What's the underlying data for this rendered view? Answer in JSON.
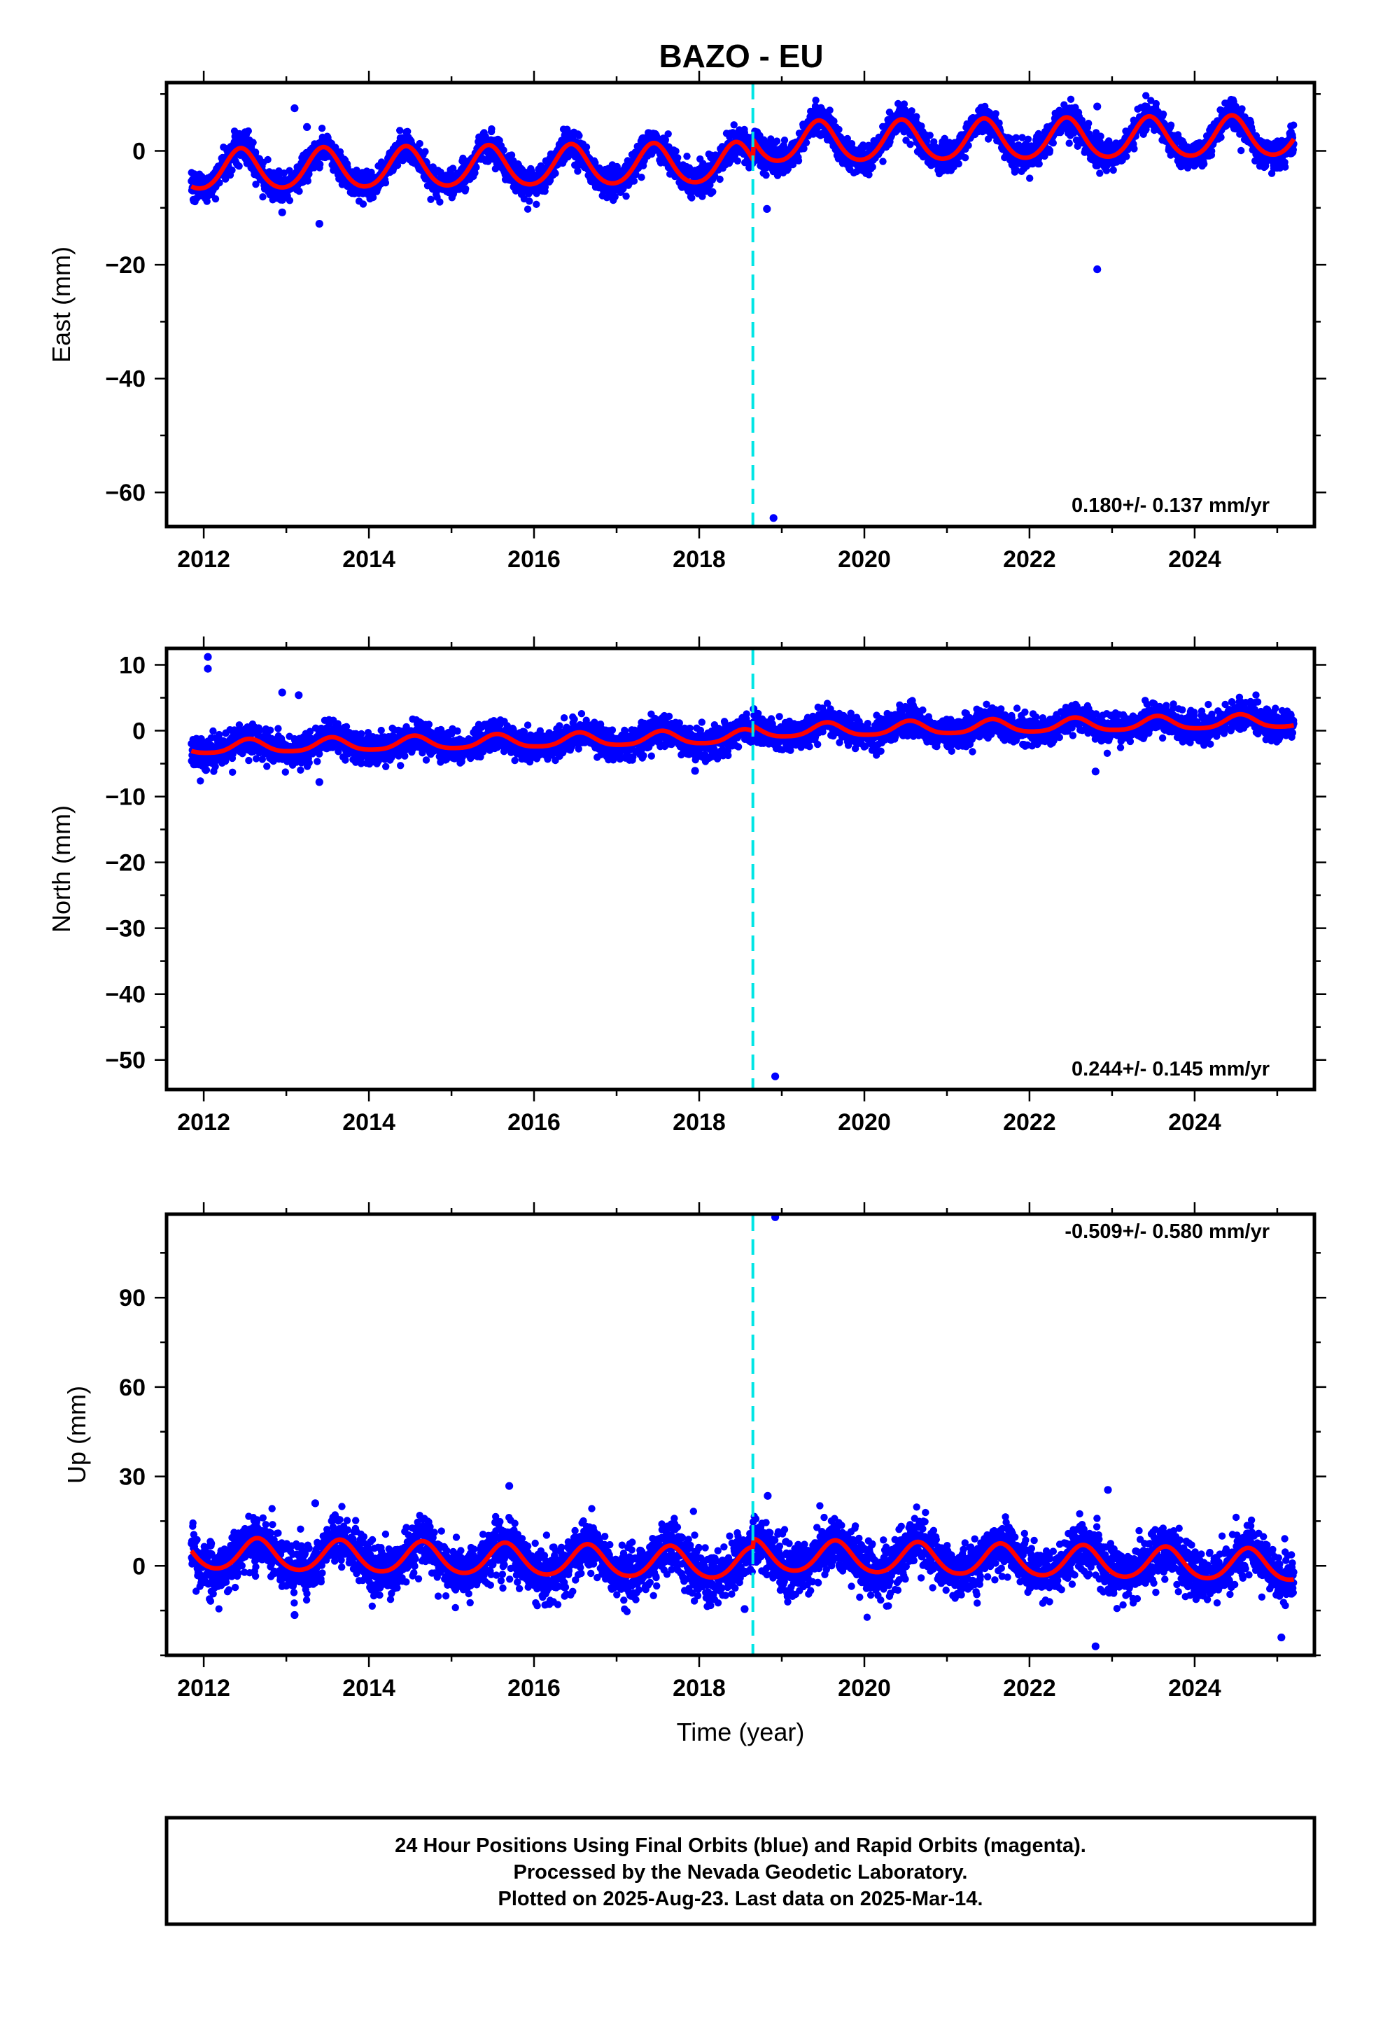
{
  "title": "BAZO - EU",
  "caption": {
    "lines": [
      "24 Hour Positions Using Final Orbits (blue) and Rapid Orbits (magenta).",
      "Processed by the Nevada Geodetic Laboratory.",
      "Plotted on 2025-Aug-23. Last data on 2025-Mar-14."
    ]
  },
  "colors": {
    "points": "#0000ff",
    "model": "#ff0000",
    "event_line": "#00e5e5",
    "frame": "#000000"
  },
  "chart_data": [
    {
      "type": "scatter",
      "component": "east",
      "ylabel": "East (mm)",
      "xlabel": "",
      "rate_text": "0.180+/- 0.137 mm/yr",
      "rate_placement": "bottom-right",
      "xlim": [
        2011.55,
        2025.45
      ],
      "ylim": [
        -66,
        12
      ],
      "xticks": [
        2012,
        2014,
        2016,
        2018,
        2020,
        2022,
        2024
      ],
      "xtick_labels": [
        "2012",
        "2014",
        "2016",
        "2018",
        "2020",
        "2022",
        "2024"
      ],
      "yticks": [
        0,
        -20,
        -40,
        -60
      ],
      "ytick_labels": [
        "0",
        "−20",
        "−40",
        "−60"
      ],
      "ytick_minor_step": 10,
      "grid": false,
      "data_start": 2011.85,
      "data_end": 2025.2,
      "event_line_x": 2018.65,
      "model": {
        "offset_before": -2.4,
        "offset_after": 1.2,
        "rate": 0.18,
        "annual_amp": 3.5,
        "annual_phase_year": 0.45,
        "semiannual_amp": 0.4,
        "steps": [
          {
            "x": 2018.65,
            "dy": 2.6
          }
        ]
      },
      "noise_sd": 1.3,
      "outliers": [
        {
          "x": 2013.1,
          "y": 7.5
        },
        {
          "x": 2013.25,
          "y": 4.2
        },
        {
          "x": 2013.4,
          "y": -12.8
        },
        {
          "x": 2012.95,
          "y": -10.8
        },
        {
          "x": 2018.82,
          "y": -10.2
        },
        {
          "x": 2018.9,
          "y": -64.5
        },
        {
          "x": 2022.82,
          "y": -20.8
        },
        {
          "x": 2022.82,
          "y": 7.8
        }
      ]
    },
    {
      "type": "scatter",
      "component": "north",
      "ylabel": "North (mm)",
      "xlabel": "",
      "rate_text": "0.244+/- 0.145 mm/yr",
      "rate_placement": "bottom-right",
      "xlim": [
        2011.55,
        2025.45
      ],
      "ylim": [
        -54.5,
        12.5
      ],
      "xticks": [
        2012,
        2014,
        2016,
        2018,
        2020,
        2022,
        2024
      ],
      "xtick_labels": [
        "2012",
        "2014",
        "2016",
        "2018",
        "2020",
        "2022",
        "2024"
      ],
      "yticks": [
        10,
        0,
        -10,
        -20,
        -30,
        -40,
        -50
      ],
      "ytick_labels": [
        "10",
        "0",
        "−10",
        "−20",
        "−30",
        "−40",
        "−50"
      ],
      "ytick_minor_step": 5,
      "grid": false,
      "data_start": 2011.85,
      "data_end": 2025.2,
      "event_line_x": 2018.65,
      "model": {
        "offset_before": -1.1,
        "offset_after": -0.3,
        "rate": 0.244,
        "annual_amp": 1.0,
        "annual_phase_year": 0.55,
        "semiannual_amp": 0.2,
        "steps": []
      },
      "noise_sd": 1.1,
      "outliers": [
        {
          "x": 2012.05,
          "y": 11.2
        },
        {
          "x": 2012.05,
          "y": 9.4
        },
        {
          "x": 2012.95,
          "y": 5.8
        },
        {
          "x": 2013.15,
          "y": 5.4
        },
        {
          "x": 2013.4,
          "y": -7.8
        },
        {
          "x": 2017.95,
          "y": -6.1
        },
        {
          "x": 2018.92,
          "y": -52.5
        },
        {
          "x": 2022.8,
          "y": -6.2
        }
      ]
    },
    {
      "type": "scatter",
      "component": "up",
      "ylabel": "Up (mm)",
      "xlabel": "Time (year)",
      "rate_text": "-0.509+/- 0.580 mm/yr",
      "rate_placement": "top-right",
      "xlim": [
        2011.55,
        2025.45
      ],
      "ylim": [
        -30,
        118
      ],
      "xticks": [
        2012,
        2014,
        2016,
        2018,
        2020,
        2022,
        2024
      ],
      "xtick_labels": [
        "2012",
        "2014",
        "2016",
        "2018",
        "2020",
        "2022",
        "2024"
      ],
      "yticks": [
        90,
        60,
        30,
        0
      ],
      "ytick_labels": [
        "90",
        "60",
        "30",
        "0"
      ],
      "ytick_minor_step": 15,
      "grid": false,
      "data_start": 2011.85,
      "data_end": 2025.2,
      "event_line_x": 2018.65,
      "model": {
        "offset_before": 0.8,
        "offset_after": 3.6,
        "rate": -0.509,
        "annual_amp": 5.2,
        "annual_phase_year": 0.65,
        "semiannual_amp": 0.6,
        "steps": [
          {
            "x": 2018.65,
            "dy": 2.8
          }
        ]
      },
      "noise_sd": 4.3,
      "outliers": [
        {
          "x": 2018.92,
          "y": 117
        },
        {
          "x": 2015.7,
          "y": 26.8
        },
        {
          "x": 2022.95,
          "y": 25.5
        },
        {
          "x": 2018.83,
          "y": 23.5
        },
        {
          "x": 2013.35,
          "y": 21.0
        },
        {
          "x": 2013.1,
          "y": -16.5
        },
        {
          "x": 2018.55,
          "y": -14.5
        },
        {
          "x": 2022.8,
          "y": -27.0
        },
        {
          "x": 2025.05,
          "y": -24.0
        }
      ]
    }
  ]
}
